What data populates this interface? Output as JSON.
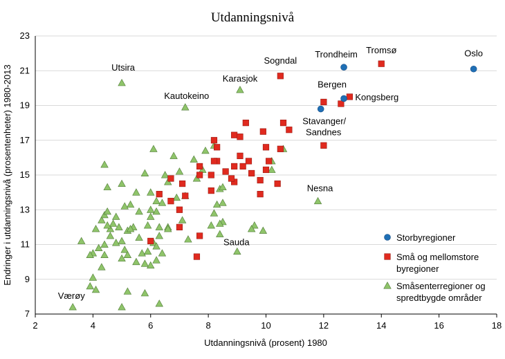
{
  "chart_data": {
    "type": "scatter",
    "title": "Utdanningsnivå",
    "xlabel": "Utdanningsnivå (prosent) 1980",
    "ylabel": "Endringer i utdanningsnivå (prosentenheter) 1980-2013",
    "xlim": [
      2,
      18
    ],
    "ylim": [
      7,
      23
    ],
    "xticks": [
      "2",
      "4",
      "6",
      "8",
      "10",
      "12",
      "14",
      "16",
      "18"
    ],
    "yticks": [
      "7",
      "9",
      "11",
      "13",
      "15",
      "17",
      "19",
      "21",
      "23"
    ],
    "grid": "horizontal",
    "legend_position": "right",
    "colors": {
      "storby": "#1f6fb5",
      "smaa_mellom": "#e02a1f",
      "smaasenter": "#8fc46a"
    },
    "series": [
      {
        "key": "storby",
        "name": "Storbyregioner",
        "marker": "circle",
        "points": [
          [
            17.2,
            21.1
          ],
          [
            12.7,
            21.2
          ],
          [
            12.7,
            19.4
          ],
          [
            11.9,
            18.8
          ]
        ]
      },
      {
        "key": "smaa_mellom",
        "name": "Små og mellomstore byregioner",
        "marker": "square",
        "points": [
          [
            14.0,
            21.4
          ],
          [
            10.5,
            20.7
          ],
          [
            12.9,
            19.5
          ],
          [
            12.6,
            19.1
          ],
          [
            12.0,
            19.2
          ],
          [
            12.0,
            16.7
          ],
          [
            10.6,
            18.0
          ],
          [
            10.8,
            17.6
          ],
          [
            9.9,
            17.5
          ],
          [
            9.3,
            18.0
          ],
          [
            8.9,
            17.3
          ],
          [
            9.1,
            17.2
          ],
          [
            10.0,
            16.6
          ],
          [
            10.5,
            16.5
          ],
          [
            8.2,
            17.0
          ],
          [
            8.3,
            16.6
          ],
          [
            8.3,
            15.8
          ],
          [
            8.2,
            15.8
          ],
          [
            8.6,
            15.2
          ],
          [
            8.9,
            15.5
          ],
          [
            9.1,
            16.1
          ],
          [
            9.2,
            15.5
          ],
          [
            9.4,
            15.8
          ],
          [
            9.5,
            15.1
          ],
          [
            10.0,
            15.3
          ],
          [
            10.1,
            15.8
          ],
          [
            9.8,
            14.7
          ],
          [
            9.8,
            13.9
          ],
          [
            10.4,
            14.5
          ],
          [
            8.9,
            14.6
          ],
          [
            8.8,
            14.8
          ],
          [
            8.1,
            15.0
          ],
          [
            7.7,
            15.0
          ],
          [
            7.7,
            15.5
          ],
          [
            8.1,
            14.1
          ],
          [
            7.1,
            14.5
          ],
          [
            6.7,
            14.8
          ],
          [
            6.3,
            13.9
          ],
          [
            6.7,
            13.5
          ],
          [
            7.0,
            13.0
          ],
          [
            7.2,
            13.8
          ],
          [
            7.0,
            12.0
          ],
          [
            6.0,
            11.2
          ],
          [
            7.7,
            11.5
          ],
          [
            7.6,
            10.3
          ]
        ]
      },
      {
        "key": "smaasenter",
        "name": "Småsenterregioner og spredtbygde områder",
        "marker": "triangle",
        "points": [
          [
            5.0,
            20.3
          ],
          [
            9.1,
            19.9
          ],
          [
            7.2,
            18.9
          ],
          [
            11.8,
            13.5
          ],
          [
            9.0,
            10.6
          ],
          [
            3.3,
            7.4
          ],
          [
            10.6,
            16.5
          ],
          [
            10.2,
            15.3
          ],
          [
            10.2,
            15.8
          ],
          [
            9.6,
            12.1
          ],
          [
            9.5,
            11.9
          ],
          [
            9.9,
            11.8
          ],
          [
            8.5,
            12.3
          ],
          [
            8.4,
            11.6
          ],
          [
            8.1,
            12.1
          ],
          [
            8.5,
            13.4
          ],
          [
            8.3,
            13.3
          ],
          [
            8.2,
            12.8
          ],
          [
            8.4,
            14.2
          ],
          [
            8.5,
            14.3
          ],
          [
            8.2,
            16.7
          ],
          [
            7.9,
            16.4
          ],
          [
            7.8,
            15.3
          ],
          [
            7.6,
            14.8
          ],
          [
            7.5,
            15.9
          ],
          [
            7.0,
            15.2
          ],
          [
            6.9,
            13.7
          ],
          [
            7.2,
            13.8
          ],
          [
            7.3,
            11.3
          ],
          [
            7.1,
            12.4
          ],
          [
            6.8,
            16.1
          ],
          [
            6.5,
            15.0
          ],
          [
            6.6,
            14.6
          ],
          [
            6.1,
            16.5
          ],
          [
            6.2,
            13.5
          ],
          [
            6.2,
            12.9
          ],
          [
            6.0,
            14.0
          ],
          [
            6.0,
            13.0
          ],
          [
            5.9,
            12.1
          ],
          [
            6.3,
            12.0
          ],
          [
            6.1,
            11.1
          ],
          [
            6.6,
            12.0
          ],
          [
            6.6,
            11.9
          ],
          [
            5.8,
            15.1
          ],
          [
            5.5,
            14.0
          ],
          [
            5.3,
            13.3
          ],
          [
            5.1,
            13.2
          ],
          [
            5.4,
            12.0
          ],
          [
            5.2,
            11.8
          ],
          [
            5.0,
            11.2
          ],
          [
            5.1,
            10.7
          ],
          [
            5.2,
            10.4
          ],
          [
            5.5,
            10.0
          ],
          [
            5.8,
            9.9
          ],
          [
            6.0,
            9.8
          ],
          [
            6.2,
            10.1
          ],
          [
            6.4,
            10.5
          ],
          [
            6.2,
            10.9
          ],
          [
            5.7,
            10.5
          ],
          [
            5.6,
            11.4
          ],
          [
            5.0,
            10.2
          ],
          [
            4.8,
            11.1
          ],
          [
            4.6,
            11.9
          ],
          [
            4.4,
            11.0
          ],
          [
            4.2,
            10.8
          ],
          [
            4.4,
            10.4
          ],
          [
            4.1,
            11.9
          ],
          [
            4.3,
            12.4
          ],
          [
            4.4,
            12.7
          ],
          [
            4.5,
            12.9
          ],
          [
            4.7,
            12.2
          ],
          [
            4.8,
            12.6
          ],
          [
            4.9,
            12.0
          ],
          [
            4.5,
            14.3
          ],
          [
            5.0,
            14.5
          ],
          [
            4.4,
            15.6
          ],
          [
            4.5,
            12.1
          ],
          [
            4.6,
            11.5
          ],
          [
            4.0,
            10.5
          ],
          [
            4.3,
            9.7
          ],
          [
            3.6,
            11.2
          ],
          [
            4.0,
            9.1
          ],
          [
            3.9,
            8.6
          ],
          [
            4.1,
            8.4
          ],
          [
            5.2,
            8.3
          ],
          [
            5.8,
            8.2
          ],
          [
            6.3,
            7.6
          ],
          [
            5.0,
            7.4
          ],
          [
            3.9,
            10.4
          ],
          [
            5.3,
            11.9
          ],
          [
            8.4,
            12.2
          ],
          [
            5.6,
            12.9
          ],
          [
            6.0,
            12.6
          ],
          [
            6.4,
            13.4
          ],
          [
            6.3,
            11.5
          ],
          [
            5.9,
            10.6
          ]
        ]
      }
    ],
    "annotations": [
      {
        "text": "Oslo",
        "x": 17.2,
        "y": 21.1
      },
      {
        "text": "Trondheim",
        "x": 12.7,
        "y": 21.2
      },
      {
        "text": "Tromsø",
        "x": 14.0,
        "y": 21.4
      },
      {
        "text": "Sogndal",
        "x": 10.5,
        "y": 20.7
      },
      {
        "text": "Utsira",
        "x": 5.0,
        "y": 20.3
      },
      {
        "text": "Karasjok",
        "x": 9.1,
        "y": 19.9
      },
      {
        "text": "Kautokeino",
        "x": 7.2,
        "y": 18.9
      },
      {
        "text": "Bergen",
        "x": 12.7,
        "y": 19.4
      },
      {
        "text": "Kongsberg",
        "x": 12.9,
        "y": 19.5
      },
      {
        "text": "Stavanger/",
        "x": 11.9,
        "y": 18.8
      },
      {
        "text": "Sandnes",
        "x": 11.9,
        "y": 18.8
      },
      {
        "text": "Nesna",
        "x": 11.8,
        "y": 13.5
      },
      {
        "text": "Sauda",
        "x": 9.0,
        "y": 10.6
      },
      {
        "text": "Værøy",
        "x": 3.3,
        "y": 7.4
      }
    ],
    "legend": [
      {
        "key": "storby",
        "lines": [
          "Storbyregioner"
        ]
      },
      {
        "key": "smaa_mellom",
        "lines": [
          "Små og mellomstore",
          "byregioner"
        ]
      },
      {
        "key": "smaasenter",
        "lines": [
          "Småsenterregioner og",
          "spredtbygde områder"
        ]
      }
    ]
  }
}
